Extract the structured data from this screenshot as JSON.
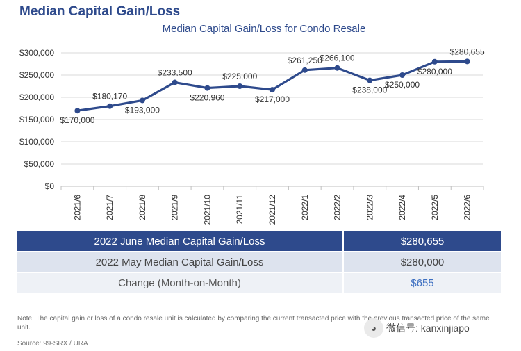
{
  "page_heading": "Median Capital Gain/Loss",
  "chart_data": {
    "type": "line",
    "title": "Median Capital Gain/Loss for Condo Resale",
    "categories": [
      "2021/6",
      "2021/7",
      "2021/8",
      "2021/9",
      "2021/10",
      "2021/11",
      "2021/12",
      "2022/1",
      "2022/2",
      "2022/3",
      "2022/4",
      "2022/5",
      "2022/6"
    ],
    "series": [
      {
        "values": [
          170000,
          180170,
          193000,
          233500,
          220960,
          225000,
          217000,
          261250,
          266100,
          238000,
          250000,
          280000,
          280655
        ],
        "data_labels": [
          "$170,000",
          "$180,170",
          "$193,000",
          "$233,500",
          "$220,960",
          "$225,000",
          "$217,000",
          "$261,250",
          "$266,100",
          "$238,000",
          "$250,000",
          "$280,000",
          "$280,655"
        ],
        "label_positions": [
          "below",
          "above",
          "below",
          "above",
          "below",
          "above",
          "below",
          "above",
          "above",
          "below",
          "below",
          "below",
          "above"
        ],
        "color": "#2e4a8c"
      }
    ],
    "ylim": [
      0,
      300000
    ],
    "yticks": [
      0,
      50000,
      100000,
      150000,
      200000,
      250000,
      300000
    ],
    "ytick_labels": [
      "$0",
      "$50,000",
      "$100,000",
      "$150,000",
      "$200,000",
      "$250,000",
      "$300,000"
    ],
    "xlabel": "",
    "ylabel": "",
    "grid": true,
    "gridline_color": "#d9d9d9"
  },
  "summary_table": {
    "rows": [
      {
        "label": "2022 June Median Capital Gain/Loss",
        "value": "$280,655"
      },
      {
        "label": "2022 May Median Capital Gain/Loss",
        "value": "$280,000"
      },
      {
        "label": "Change (Month-on-Month)",
        "value": "$655"
      }
    ],
    "header_color": "#2e4a8c",
    "change_color": "#3d6fc1"
  },
  "note": "Note: The capital gain or loss of a condo resale unit is calculated by comparing the current transacted price with the previous transacted price of the same unit.",
  "source": "Source: 99-SRX / URA",
  "watermark": {
    "icon": "wechat-icon",
    "text": "微信号: kanxinjiapo"
  }
}
